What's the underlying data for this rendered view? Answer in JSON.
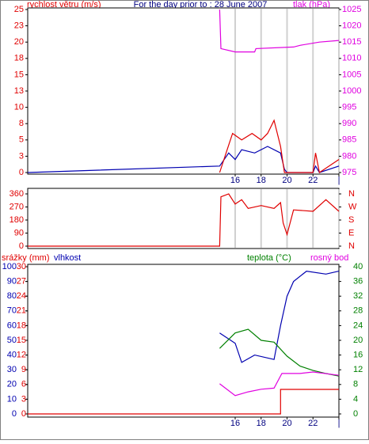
{
  "chart_data": [
    {
      "type": "line",
      "title": "For the day prior to : 28 June 2007",
      "ylabel": "rychlost větru (m/s)",
      "y2label": "tlak (hPa)",
      "xlim": [
        0,
        24
      ],
      "xticks": [
        16,
        18,
        20,
        22,
        {
          "value": 24,
          "label": "|"
        }
      ],
      "grid": true,
      "ylim": [
        0,
        25
      ],
      "yticks": [
        0,
        {
          "value": 2.5,
          "label": "3"
        },
        5,
        {
          "value": 7.5,
          "label": "8"
        },
        10,
        {
          "value": 12.5,
          "label": "13"
        },
        15,
        {
          "value": 17.5,
          "label": "18"
        },
        20,
        {
          "value": 22.5,
          "label": "23"
        },
        25
      ],
      "y2lim": [
        975,
        1025
      ],
      "y2ticks": [
        975,
        980,
        985,
        990,
        995,
        1000,
        1005,
        1010,
        1015,
        1020,
        1025
      ],
      "series": [
        {
          "color": "#0000b0",
          "axis": "y",
          "x": [
            0,
            14.8,
            15.5,
            16,
            16.5,
            17.5,
            18.5,
            19.5,
            19.8,
            20,
            22,
            22.2,
            22.5,
            24
          ],
          "values": [
            0,
            1,
            3,
            2,
            3.5,
            3,
            4,
            3,
            0.5,
            0,
            0,
            1,
            0,
            1
          ]
        },
        {
          "color": "#e00000",
          "axis": "y",
          "x": [
            14.8,
            15.3,
            15.8,
            16.5,
            17.3,
            18,
            18.5,
            19,
            19.5,
            19.8,
            22,
            22.2,
            22.5,
            24
          ],
          "values": [
            0,
            3,
            6,
            5,
            6,
            5,
            6,
            8,
            4,
            0,
            0,
            3,
            0,
            2
          ]
        },
        {
          "color": "#e000e0",
          "axis": "y2",
          "x": [
            14.8,
            14.9,
            16,
            17.5,
            17.6,
            20.5,
            21,
            22.5,
            24
          ],
          "values": [
            1025,
            1013,
            1012,
            1012,
            1013,
            1013.5,
            1014,
            1015,
            1015.5
          ]
        }
      ]
    },
    {
      "type": "line",
      "grid": true,
      "xlim": [
        0,
        24
      ],
      "ylim": [
        0,
        360
      ],
      "yticks": [
        0,
        90,
        180,
        270,
        360
      ],
      "y2lim": [
        0,
        360
      ],
      "y2ticks": [
        {
          "value": 0,
          "label": "N"
        },
        {
          "value": 90,
          "label": "E"
        },
        {
          "value": 180,
          "label": "S"
        },
        {
          "value": 270,
          "label": "W"
        },
        {
          "value": 360,
          "label": "N"
        }
      ],
      "series": [
        {
          "color": "#e00000",
          "axis": "y",
          "x": [
            0,
            14.8,
            14.9,
            15.5,
            16,
            16.5,
            17,
            18,
            19,
            19.5,
            19.7,
            20,
            20.5,
            22,
            23,
            24
          ],
          "values": [
            0,
            0,
            340,
            360,
            290,
            320,
            260,
            280,
            260,
            300,
            160,
            80,
            250,
            240,
            320,
            240
          ]
        }
      ]
    },
    {
      "type": "line",
      "xlim": [
        0,
        24
      ],
      "xticks": [
        16,
        18,
        20,
        22,
        {
          "value": 24,
          "label": "|"
        }
      ],
      "ylim": [
        0,
        100
      ],
      "yticks": [
        0,
        10,
        20,
        30,
        40,
        50,
        60,
        70,
        80,
        90,
        100
      ],
      "y2lim": [
        0,
        40
      ],
      "y2ticks": [
        0,
        4,
        8,
        12,
        16,
        20,
        24,
        28,
        32,
        36,
        40
      ],
      "y3lim": [
        0,
        30
      ],
      "y3ticks": [
        0,
        3,
        6,
        9,
        12,
        15,
        18,
        21,
        24,
        27,
        30
      ],
      "series": [
        {
          "name": "srážky (mm)",
          "color": "#e00000",
          "axis": "y3",
          "x": [
            0,
            19.5,
            19.5,
            24
          ],
          "values": [
            0,
            0,
            5,
            5
          ]
        },
        {
          "name": "vlhkost",
          "color": "#0000b0",
          "axis": "y",
          "x": [
            14.8,
            16,
            16.5,
            17.5,
            19,
            19.5,
            20,
            20.5,
            21.5,
            23,
            24
          ],
          "values": [
            55,
            48,
            35,
            40,
            37,
            60,
            80,
            90,
            97,
            95,
            97
          ]
        },
        {
          "name": "teplota (°C)",
          "color": "#008000",
          "axis": "y2",
          "x": [
            14.8,
            16,
            17,
            18,
            19,
            20,
            21,
            22,
            23,
            24
          ],
          "values": [
            17.8,
            22,
            23,
            20,
            19.5,
            15.7,
            13,
            11.8,
            11,
            10.3
          ]
        },
        {
          "name": "rosný bod",
          "color": "#e000e0",
          "axis": "y2",
          "x": [
            14.8,
            16,
            17,
            18,
            19,
            19.6,
            21,
            22,
            24
          ],
          "values": [
            8.2,
            5,
            6,
            6.7,
            7,
            11,
            11,
            11.4,
            10.5
          ]
        }
      ]
    }
  ]
}
